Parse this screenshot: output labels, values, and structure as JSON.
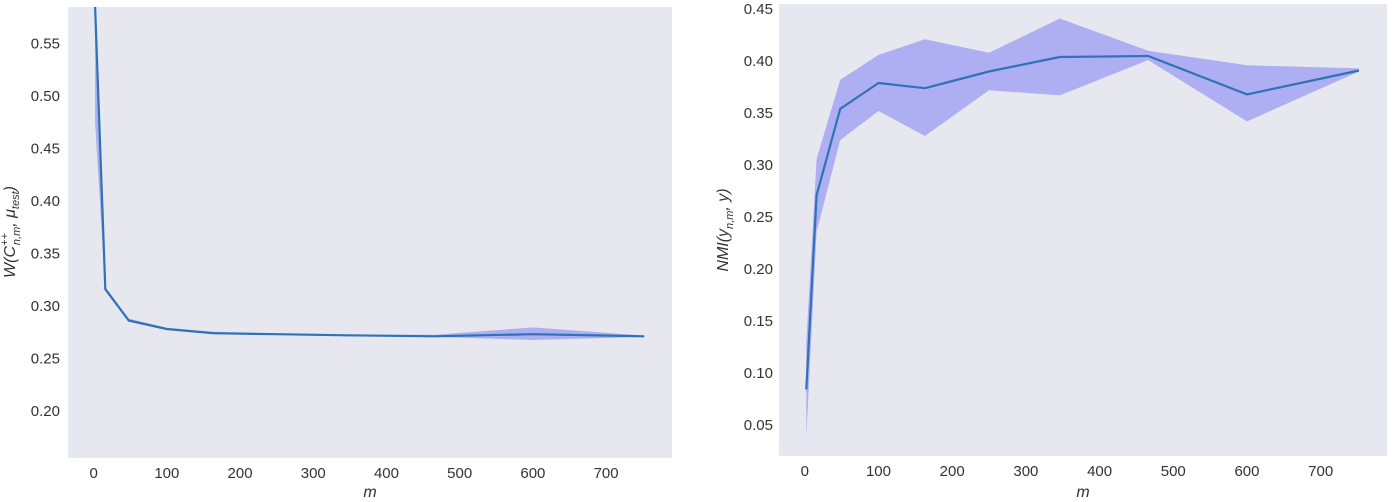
{
  "chart_data": [
    {
      "type": "line",
      "xlabel": "m",
      "ylabel_parts": {
        "base": "W(C",
        "sup": "++",
        "sub": "n,m",
        "rest": ", μ",
        "sub2": "test",
        "close": ")"
      },
      "xlim": [
        -35,
        790
      ],
      "ylim": [
        0.155,
        0.585
      ],
      "xticks": [
        0,
        100,
        200,
        300,
        400,
        500,
        600,
        700
      ],
      "yticks": [
        0.2,
        0.25,
        0.3,
        0.35,
        0.4,
        0.45,
        0.5,
        0.55
      ],
      "x": [
        2,
        16,
        48,
        100,
        163,
        250,
        346,
        466,
        600,
        752
      ],
      "y": [
        0.6,
        0.316,
        0.286,
        0.278,
        0.274,
        0.273,
        0.272,
        0.271,
        0.273,
        0.271
      ],
      "y_lower": [
        0.475,
        0.314,
        0.285,
        0.277,
        0.273,
        0.2725,
        0.2715,
        0.2705,
        0.2675,
        0.2705
      ],
      "y_upper": [
        0.6,
        0.318,
        0.288,
        0.279,
        0.2755,
        0.2735,
        0.2725,
        0.2725,
        0.2795,
        0.2715
      ],
      "line_color": "#2f72b5",
      "band_color": "#a3a5f2",
      "background": "#e7e7f0",
      "grid": false
    },
    {
      "type": "line",
      "xlabel": "m",
      "ylabel_parts": {
        "base": "NMI(y",
        "sub": "n,m",
        "rest": ", y)"
      },
      "xlim": [
        -35,
        790
      ],
      "ylim": [
        0.02,
        0.455
      ],
      "xticks": [
        0,
        100,
        200,
        300,
        400,
        500,
        600,
        700
      ],
      "yticks": [
        0.05,
        0.1,
        0.15,
        0.2,
        0.25,
        0.3,
        0.35,
        0.4,
        0.45
      ],
      "x": [
        2,
        16,
        48,
        100,
        163,
        250,
        346,
        466,
        600,
        752
      ],
      "y": [
        0.084,
        0.271,
        0.354,
        0.379,
        0.374,
        0.39,
        0.404,
        0.405,
        0.368,
        0.391
      ],
      "y_lower": [
        0.038,
        0.236,
        0.324,
        0.352,
        0.328,
        0.372,
        0.367,
        0.401,
        0.342,
        0.39
      ],
      "y_upper": [
        0.13,
        0.306,
        0.382,
        0.406,
        0.421,
        0.408,
        0.441,
        0.41,
        0.396,
        0.393
      ],
      "line_color": "#2f72b5",
      "band_color": "#a3a5f2",
      "background": "#e7e7f0",
      "grid": false
    }
  ]
}
